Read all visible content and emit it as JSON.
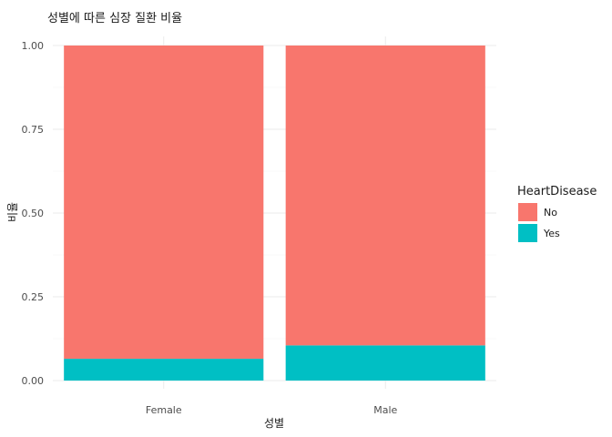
{
  "chart_data": {
    "type": "bar",
    "stacked": true,
    "title": "성별에 따른 심장 질환 비율",
    "xlabel": "성별",
    "ylabel": "비율",
    "categories": [
      "Female",
      "Male"
    ],
    "ylim": [
      0,
      1
    ],
    "yticks": [
      "0.00",
      "0.25",
      "0.50",
      "0.75",
      "1.00"
    ],
    "series": [
      {
        "name": "No",
        "color": "#F8766D",
        "values": [
          0.935,
          0.895
        ]
      },
      {
        "name": "Yes",
        "color": "#00BFC4",
        "values": [
          0.065,
          0.105
        ]
      }
    ],
    "legend": {
      "title": "HeartDisease",
      "position": "right"
    },
    "grid": true
  }
}
